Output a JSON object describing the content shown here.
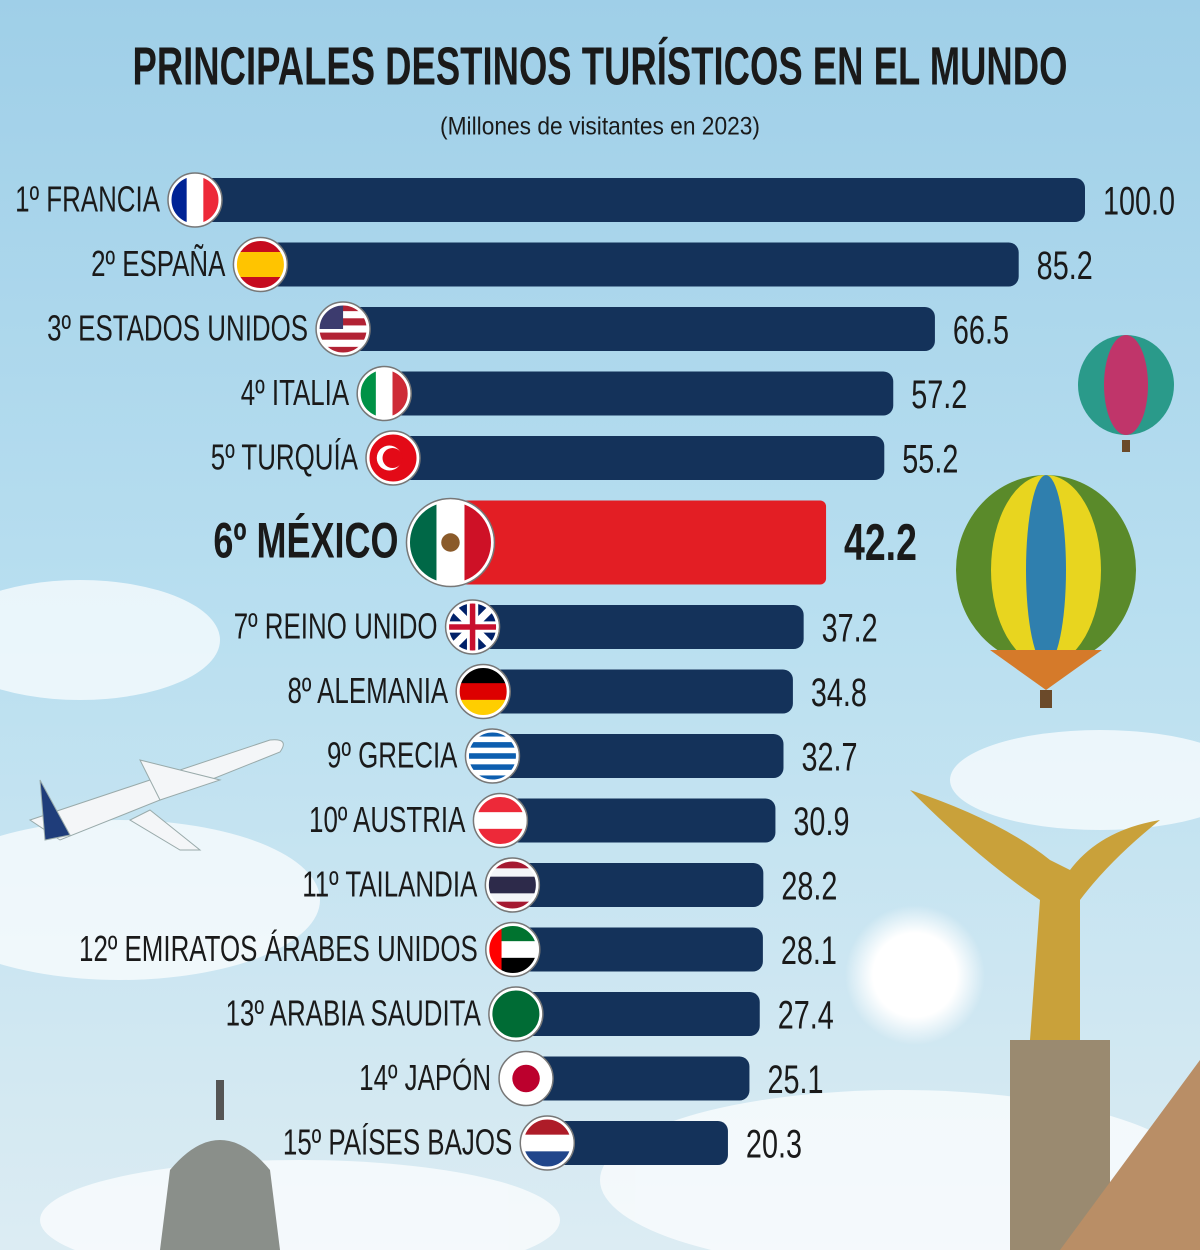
{
  "chart_data": {
    "type": "bar",
    "title": "PRINCIPALES DESTINOS TURÍSTICOS EN EL MUNDO",
    "subtitle": "(Millones de visitantes en 2023)",
    "categories": [
      "1º FRANCIA",
      "2º ESPAÑA",
      "3º ESTADOS UNIDOS",
      "4º ITALIA",
      "5º TURQUÍA",
      "6º MÉXICO",
      "7º REINO UNIDO",
      "8º ALEMANIA",
      "9º GRECIA",
      "10º AUSTRIA",
      "11º TAILANDIA",
      "12º EMIRATOS ÁRABES UNIDOS",
      "13º ARABIA SAUDITA",
      "14º JAPÓN",
      "15º PAÍSES BAJOS"
    ],
    "values": [
      100,
      85.2,
      66.5,
      57.2,
      55.2,
      42.2,
      37.2,
      34.8,
      32.7,
      30.9,
      28.2,
      28.1,
      27.4,
      25.1,
      20.3
    ],
    "value_labels": [
      "100.0",
      "85.2",
      "66.5",
      "57.2",
      "55.2",
      "42.2",
      "37.2",
      "34.8",
      "32.7",
      "30.9",
      "28.2",
      "28.1",
      "27.4",
      "25.1",
      "20.3"
    ],
    "color": "#14325a",
    "colors": [
      "#14325a",
      "#14325a",
      "#14325a",
      "#14325a",
      "#14325a",
      "#e31e24",
      "#14325a",
      "#14325a",
      "#14325a",
      "#14325a",
      "#14325a",
      "#14325a",
      "#14325a",
      "#14325a",
      "#14325a"
    ]
  }
}
